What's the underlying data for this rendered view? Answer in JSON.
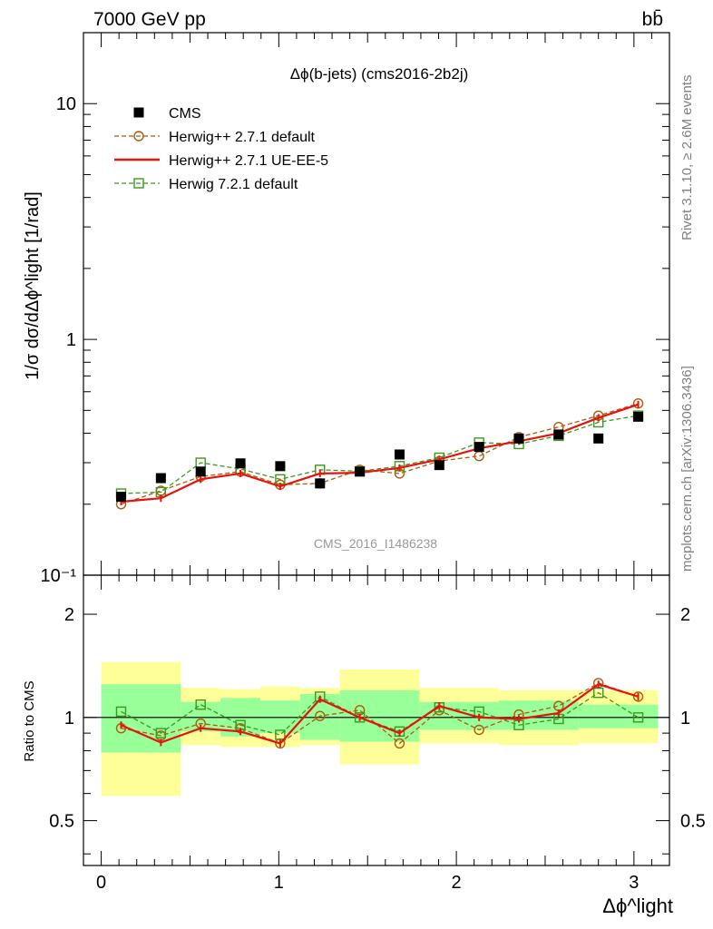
{
  "header": {
    "energy_label": "7000 GeV pp",
    "process_label": "bb̄"
  },
  "side_labels": {
    "rivet": "Rivet 3.1.10, ≥ 2.6M events",
    "mcplots": "mcplots.cern.ch [arXiv:1306.3436]"
  },
  "chart_data": [
    {
      "type": "scatter",
      "title": "Δϕ(b-jets) (cms2016-2b2j)",
      "ylabel": "1/σ dσ/dΔϕ^light [1/rad]",
      "xlabel": "Δϕ^light",
      "yscale": "log",
      "ylim": [
        0.1,
        20
      ],
      "xlim": [
        -0.1,
        3.2
      ],
      "y_tick_labels": [
        "10⁻¹",
        "1",
        "10"
      ],
      "x_tick_labels": [
        "0",
        "1",
        "2",
        "3"
      ],
      "watermark": "CMS_2016_I1486238",
      "legend_position": "top-left",
      "x": [
        0.112,
        0.336,
        0.56,
        0.784,
        1.008,
        1.232,
        1.456,
        1.68,
        1.904,
        2.128,
        2.352,
        2.576,
        2.8,
        3.024
      ],
      "series": [
        {
          "name": "CMS",
          "color": "#000000",
          "marker": "filled-square",
          "values": [
            0.215,
            0.258,
            0.275,
            0.298,
            0.29,
            0.245,
            0.275,
            0.325,
            0.293,
            0.35,
            0.38,
            0.395,
            0.38,
            0.47
          ]
        },
        {
          "name": "Herwig++ 2.7.1 default",
          "color": "#b05a0a",
          "marker": "open-circle",
          "line": "dashed",
          "values": [
            0.2,
            0.228,
            0.262,
            0.275,
            0.242,
            0.245,
            0.28,
            0.27,
            0.305,
            0.32,
            0.385,
            0.425,
            0.475,
            0.535
          ]
        },
        {
          "name": "Herwig++ 2.7.1 UE-EE-5",
          "color": "#e8120e",
          "marker": "none",
          "line": "solid",
          "values": [
            0.205,
            0.212,
            0.255,
            0.27,
            0.238,
            0.27,
            0.272,
            0.285,
            0.31,
            0.345,
            0.37,
            0.4,
            0.465,
            0.53
          ]
        },
        {
          "name": "Herwig 7.2.1 default",
          "color": "#3c9a1a",
          "marker": "open-square",
          "line": "dashed",
          "values": [
            0.222,
            0.225,
            0.3,
            0.282,
            0.255,
            0.28,
            0.276,
            0.29,
            0.315,
            0.365,
            0.36,
            0.39,
            0.445,
            0.475
          ]
        }
      ]
    },
    {
      "type": "line",
      "ylabel": "Ratio to CMS",
      "yscale": "log",
      "ylim": [
        0.37,
        2.6
      ],
      "y_tick_labels": [
        "0.5",
        "1",
        "2"
      ],
      "reference_line": 1,
      "bin_edges": [
        0,
        0.448,
        0.672,
        0.896,
        1.12,
        1.344,
        1.792,
        2.24,
        2.688,
        3.136
      ],
      "band_inner": [
        [
          0.79,
          1.25
        ],
        [
          0.91,
          1.11
        ],
        [
          0.88,
          1.14
        ],
        [
          0.9,
          1.12
        ],
        [
          0.86,
          1.17
        ],
        [
          0.85,
          1.2
        ],
        [
          0.92,
          1.11
        ],
        [
          0.92,
          1.12
        ],
        [
          0.93,
          1.09
        ]
      ],
      "band_outer": [
        [
          0.59,
          1.45
        ],
        [
          0.83,
          1.22
        ],
        [
          0.82,
          1.21
        ],
        [
          0.82,
          1.23
        ],
        [
          0.83,
          1.22
        ],
        [
          0.73,
          1.38
        ],
        [
          0.84,
          1.22
        ],
        [
          0.83,
          1.2
        ],
        [
          0.84,
          1.2
        ]
      ],
      "x": [
        0.112,
        0.336,
        0.56,
        0.784,
        1.008,
        1.232,
        1.456,
        1.68,
        1.904,
        2.128,
        2.352,
        2.576,
        2.8,
        3.024
      ],
      "series": [
        {
          "name": "Herwig++ 2.7.1 default",
          "color": "#b05a0a",
          "marker": "open-circle",
          "line": "dashed",
          "values": [
            0.93,
            0.885,
            0.96,
            0.93,
            0.84,
            1.01,
            1.05,
            0.84,
            1.05,
            0.92,
            1.02,
            1.08,
            1.26,
            1.15
          ]
        },
        {
          "name": "Herwig++ 2.7.1 UE-EE-5",
          "color": "#e8120e",
          "marker": "none",
          "line": "solid",
          "values": [
            0.95,
            0.845,
            0.93,
            0.91,
            0.84,
            1.13,
            1.0,
            0.9,
            1.08,
            1.0,
            0.99,
            1.03,
            1.25,
            1.15
          ]
        },
        {
          "name": "Herwig 7.2.1 default",
          "color": "#3c9a1a",
          "marker": "open-square",
          "line": "dashed",
          "values": [
            1.04,
            0.9,
            1.09,
            0.95,
            0.89,
            1.15,
            1.0,
            0.91,
            1.07,
            1.04,
            0.95,
            0.99,
            1.18,
            1.0
          ]
        }
      ]
    }
  ]
}
